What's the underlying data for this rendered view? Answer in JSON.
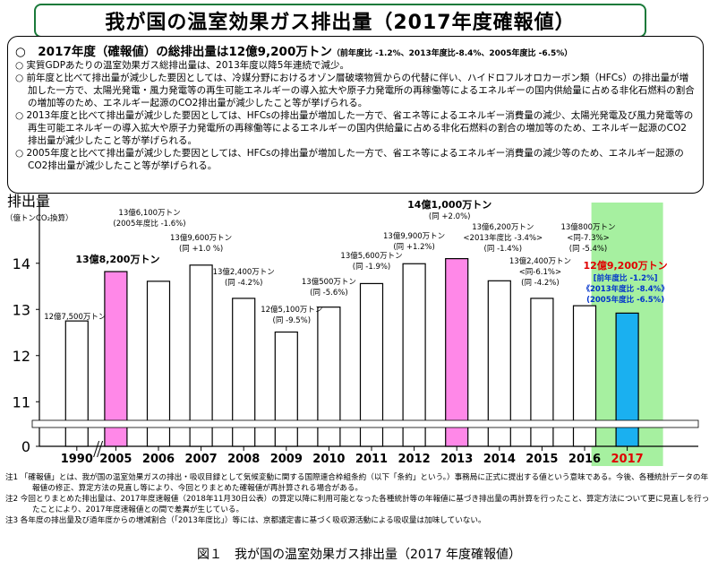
{
  "title": "我が国の温室効果ガス排出量（2017年度確報値）",
  "summary": {
    "headline_main": "○　2017年度（確報値）の総排出量は12億9,200万トン",
    "headline_detail": "（前年度比 -1.2%、2013年度比-8.4%、2005年度比 -6.5%）",
    "bullets": [
      "○ 実質GDPあたりの温室効果ガス総排出量は、2013年度以降5年連続で減少。",
      "○ 前年度と比べて排出量が減少した要因としては、冷媒分野におけるオゾン層破壊物質からの代替に伴い、ハイドロフルオロカーボン類（HFCs）の排出量が増加した一方で、太陽光発電・風力発電等の再生可能エネルギーの導入拡大や原子力発電所の再稼働等によるエネルギーの国内供給量に占める非化石燃料の割合の増加等のため、エネルギー起源のCO2排出量が減少したこと等が挙げられる。",
      "○ 2013年度と比べて排出量が減少した要因としては、HFCsの排出量が増加した一方で、省エネ等によるエネルギー消費量の減少、太陽光発電及び風力発電等の再生可能エネルギーの導入拡大や原子力発電所の再稼働等によるエネルギーの国内供給量に占める非化石燃料の割合の増加等のため、エネルギー起源のCO2排出量が減少したこと等が挙げられる。",
      "○ 2005年度と比べて排出量が減少した要因としては、HFCsの排出量が増加した一方で、省エネ等によるエネルギー消費量の減少等のため、エネルギー起源のCO2排出量が減少したこと等が挙げられる。"
    ]
  },
  "chart_data": {
    "type": "bar",
    "ylabel": "排出量",
    "yunit": "（億トンCO₂換算）",
    "ylim": [
      10.5,
      14.5
    ],
    "yticks": [
      "11",
      "12",
      "13",
      "14"
    ],
    "y_zero_label": "0",
    "categories": [
      "1990",
      "2005",
      "2006",
      "2007",
      "2008",
      "2009",
      "2010",
      "2011",
      "2012",
      "2013",
      "2014",
      "2015",
      "2016",
      "2017"
    ],
    "values": [
      12.75,
      13.82,
      13.61,
      13.96,
      13.24,
      12.51,
      13.05,
      13.56,
      13.99,
      14.1,
      13.62,
      13.24,
      13.08,
      12.92
    ],
    "bar_types": [
      "plain",
      "highlight",
      "plain",
      "plain",
      "plain",
      "plain",
      "plain",
      "plain",
      "plain",
      "highlight",
      "plain",
      "plain",
      "plain",
      "current"
    ],
    "labels": [
      [
        "12億7,500万トン"
      ],
      [
        "13億8,200万トン"
      ],
      [
        "13億6,100万トン",
        "(2005年度比 -1.6%)"
      ],
      [
        "13億9,600万トン",
        "(同 +1.0 %)"
      ],
      [
        "13億2,400万トン",
        "(同 -4.2%)"
      ],
      [
        "12億5,100万トン",
        "(同 -9.5%)"
      ],
      [
        "13億500万トン",
        "(同 -5.6%)"
      ],
      [
        "13億5,600万トン",
        "(同 -1.9%)"
      ],
      [
        "13億9,900万トン",
        "(同 +1.2%)"
      ],
      [
        "14億1,000万トン",
        "(同 +2.0%)"
      ],
      [
        "13億6,200万トン",
        "<2013年度比 -3.4%>",
        "(同 -1.4%)"
      ],
      [
        "13億2,400万トン",
        "<同-6.1%>",
        "(同 -4.2%)"
      ],
      [
        "13億800万トン",
        "<同-7.3%>",
        "(同 -5.4%)"
      ],
      [
        "12億9,200万トン",
        "[前年度比 -1.2%]",
        "《2013年度比 -8.4%》",
        "(2005年度比 -6.5%)"
      ]
    ],
    "colors": {
      "plain": "#ffffff",
      "highlight": "#ff88e8",
      "current": "#1ab0f0",
      "current_bg": "#a6f0a0",
      "current_label": "#e00000",
      "current_detail": "#0033cc"
    },
    "grid": false,
    "legend": "none"
  },
  "notes": [
    "注1 「確報値」とは、我が国の温室効果ガスの排出・吸収目録として気候変動に関する国際連合枠組条約（以下「条約」という。）事務局に正式に提出する値という意味である。今後、各種統計データの年報値の修正、算定方法の見直し等により、今回とりまとめた確報値が再計算される場合がある。",
    "注2 今回とりまとめた排出量は、2017年度速報値（2018年11月30日公表）の算定以降に利用可能となった各種統計等の年報値に基づき排出量の再計算を行ったこと、算定方法について更に見直しを行ったことにより、2017年度速報値との間で差異が生じている。",
    "注3 各年度の排出量及び過年度からの増減割合（「2013年度比」）等には、京都議定書に基づく吸収源活動による吸収量は加味していない。"
  ],
  "caption": "図１　我が国の温室効果ガス排出量（2017 年度確報値）"
}
